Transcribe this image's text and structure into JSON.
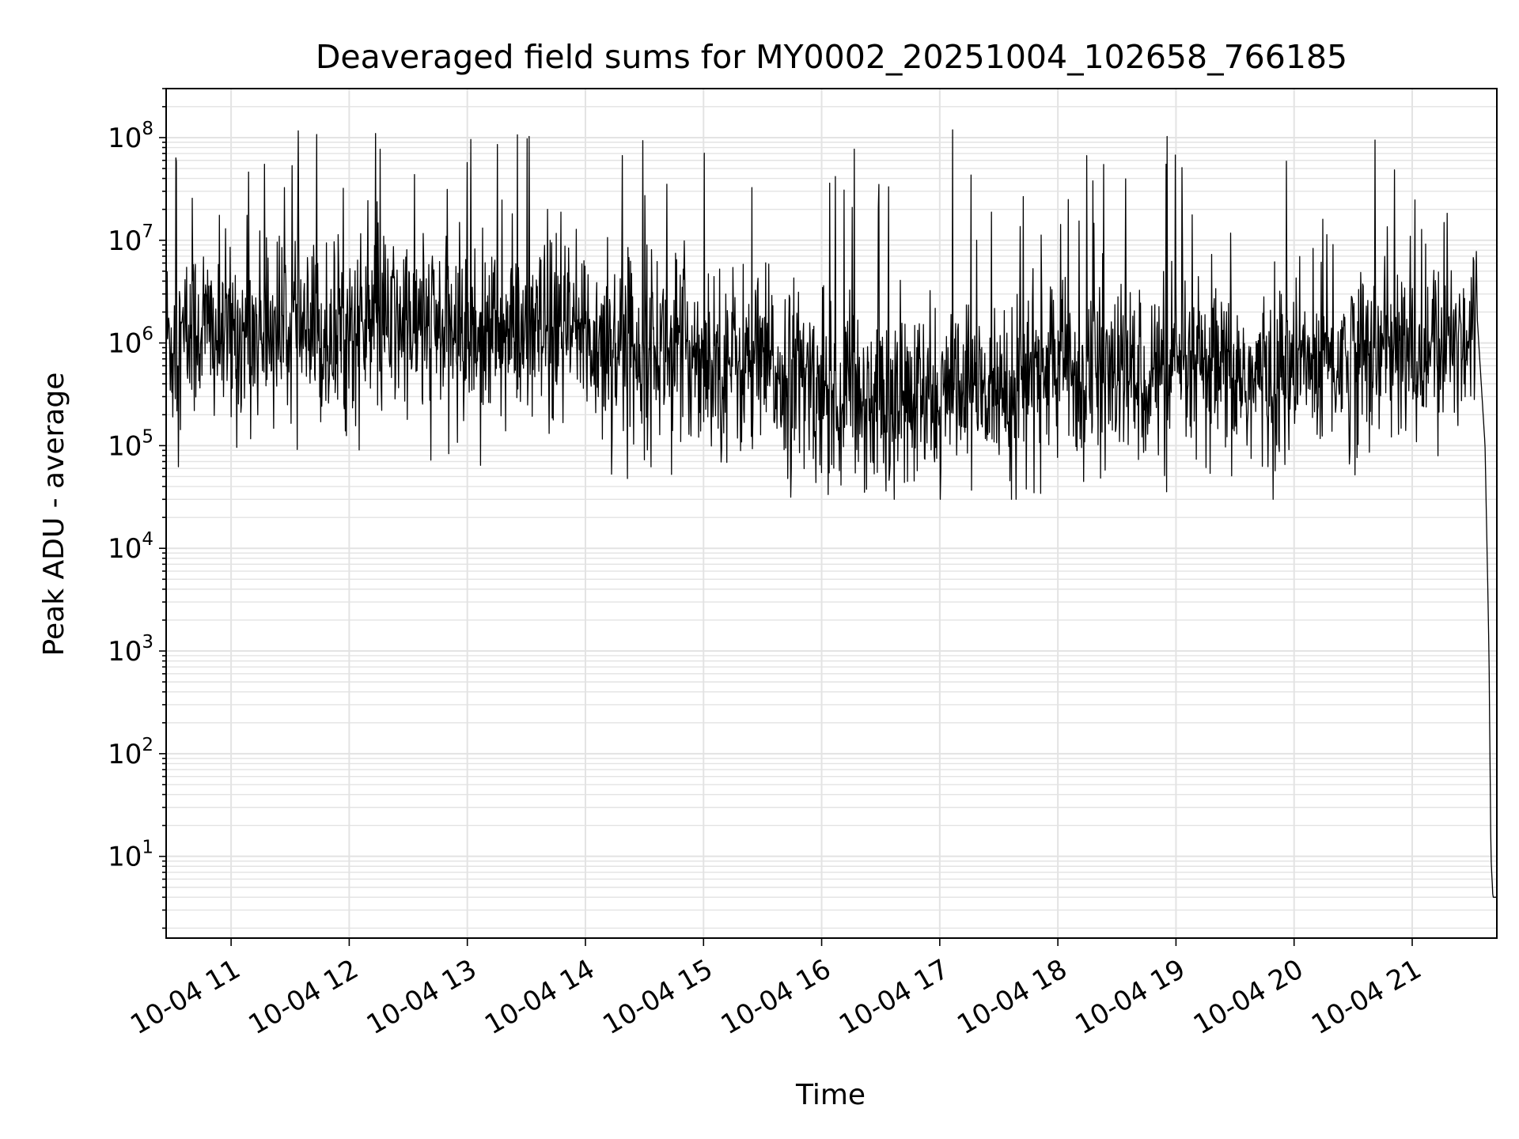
{
  "chart_data": {
    "type": "line",
    "title": "Deaveraged field sums for MY0002_20251004_102658_766185",
    "xlabel": "Time",
    "ylabel": "Peak ADU - average",
    "y_scale": "log",
    "ylim": [
      1.6,
      300000000.0
    ],
    "xlim": [
      "2025-10-04 10:27",
      "2025-10-04 21:43"
    ],
    "x_ticks": [
      {
        "label": "10-04 11",
        "value": "2025-10-04 11:00"
      },
      {
        "label": "10-04 12",
        "value": "2025-10-04 12:00"
      },
      {
        "label": "10-04 13",
        "value": "2025-10-04 13:00"
      },
      {
        "label": "10-04 14",
        "value": "2025-10-04 14:00"
      },
      {
        "label": "10-04 15",
        "value": "2025-10-04 15:00"
      },
      {
        "label": "10-04 16",
        "value": "2025-10-04 16:00"
      },
      {
        "label": "10-04 17",
        "value": "2025-10-04 17:00"
      },
      {
        "label": "10-04 18",
        "value": "2025-10-04 18:00"
      },
      {
        "label": "10-04 19",
        "value": "2025-10-04 19:00"
      },
      {
        "label": "10-04 20",
        "value": "2025-10-04 20:00"
      },
      {
        "label": "10-04 21",
        "value": "2025-10-04 21:00"
      }
    ],
    "y_ticks": [
      {
        "base": "10",
        "exp": "1",
        "value": 10
      },
      {
        "base": "10",
        "exp": "2",
        "value": 100
      },
      {
        "base": "10",
        "exp": "3",
        "value": 1000
      },
      {
        "base": "10",
        "exp": "4",
        "value": 10000
      },
      {
        "base": "10",
        "exp": "5",
        "value": 100000
      },
      {
        "base": "10",
        "exp": "6",
        "value": 1000000
      },
      {
        "base": "10",
        "exp": "7",
        "value": 10000000
      },
      {
        "base": "10",
        "exp": "8",
        "value": 100000000
      }
    ],
    "grid": true,
    "line_color": "#000000",
    "grid_color": "#e3e3e3",
    "series": [
      {
        "x": [
          "2025-10-04 10:27",
          "2025-10-04 10:32",
          "2025-10-04 10:45",
          "2025-10-04 10:55",
          "2025-10-04 11:12",
          "2025-10-04 11:30",
          "2025-10-04 11:40",
          "2025-10-04 11:52",
          "2025-10-04 12:06",
          "2025-10-04 12:30",
          "2025-10-04 12:50",
          "2025-10-04 13:15",
          "2025-10-04 13:30",
          "2025-10-04 13:50",
          "2025-10-04 14:15",
          "2025-10-04 14:45",
          "2025-10-04 15:10",
          "2025-10-04 15:35",
          "2025-10-04 15:55",
          "2025-10-04 16:20",
          "2025-10-04 16:35",
          "2025-10-04 16:50",
          "2025-10-04 17:15",
          "2025-10-04 17:40",
          "2025-10-04 18:00",
          "2025-10-04 18:10",
          "2025-10-04 18:25",
          "2025-10-04 18:45",
          "2025-10-04 19:05",
          "2025-10-04 19:30",
          "2025-10-04 19:45",
          "2025-10-04 20:05",
          "2025-10-04 20:25",
          "2025-10-04 20:45",
          "2025-10-04 21:05",
          "2025-10-04 21:20",
          "2025-10-04 21:30",
          "2025-10-04 21:33",
          "2025-10-04 21:37",
          "2025-10-04 21:39",
          "2025-10-04 21:40",
          "2025-10-04 21:41",
          "2025-10-04 21:43"
        ],
        "values": [
          1200000,
          900000,
          1500000,
          1100000,
          1300000,
          1500000,
          1000000,
          1200000,
          1400000,
          1500000,
          1300000,
          1200000,
          1100000,
          1200000,
          1000000,
          900000,
          700000,
          550000,
          400000,
          300000,
          280000,
          260000,
          300000,
          400000,
          700000,
          450000,
          500000,
          480000,
          520000,
          450000,
          420000,
          600000,
          700000,
          800000,
          750000,
          1000000,
          1500000,
          1800000,
          100000,
          1000,
          10,
          4,
          4
        ]
      }
    ],
    "noise": {
      "type": "log-normal",
      "sigma_decades": 0.45,
      "spike_probability": 0.025,
      "spike_max": 120000000,
      "floor": 30000
    }
  }
}
